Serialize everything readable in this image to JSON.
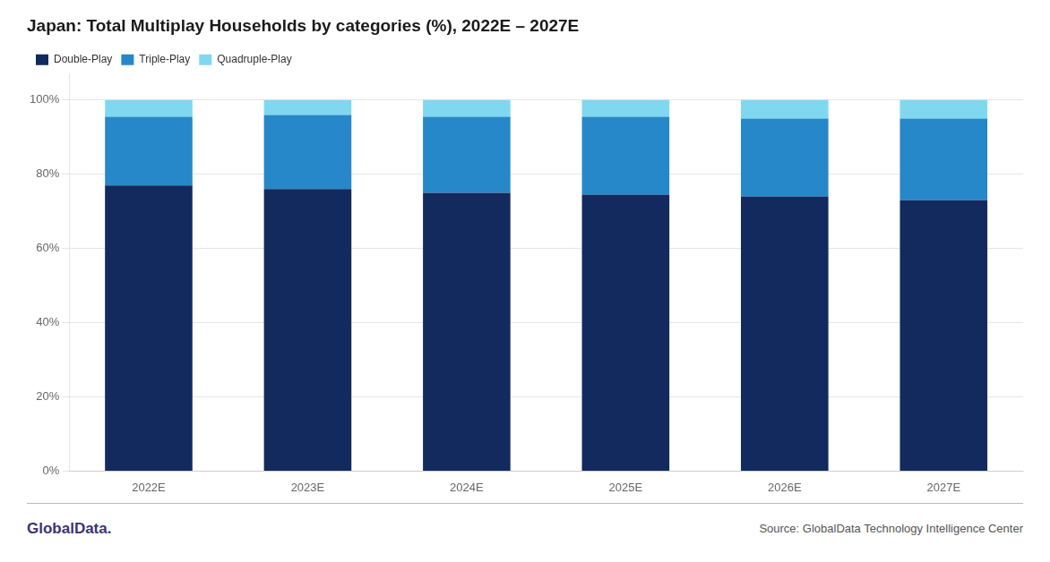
{
  "chart_data": {
    "type": "bar",
    "title": "Japan: Total Multiplay Households by categories (%), 2022E – 2027E",
    "categories": [
      "2022E",
      "2023E",
      "2024E",
      "2025E",
      "2026E",
      "2027E"
    ],
    "series": [
      {
        "name": "Double-Play",
        "color": "#132a5e",
        "values": [
          77.0,
          76.0,
          75.0,
          74.5,
          74.0,
          73.0
        ]
      },
      {
        "name": "Triple-Play",
        "color": "#2688c8",
        "values": [
          18.5,
          20.0,
          20.5,
          21.0,
          21.0,
          22.0
        ]
      },
      {
        "name": "Quadruple-Play",
        "color": "#7fd8f0",
        "values": [
          4.5,
          4.0,
          4.5,
          4.5,
          5.0,
          5.0
        ]
      }
    ],
    "stacked": true,
    "ylim": [
      0,
      107
    ],
    "yticks": [
      {
        "value": 0,
        "label": "0%"
      },
      {
        "value": 20,
        "label": "20%"
      },
      {
        "value": 40,
        "label": "40%"
      },
      {
        "value": 60,
        "label": "60%"
      },
      {
        "value": 80,
        "label": "80%"
      },
      {
        "value": 100,
        "label": "100%"
      }
    ],
    "grid": "y",
    "legend": "upper left",
    "annotations": [
      {
        "text": "GlobalData.",
        "color": "#3b3472"
      },
      {
        "text": "Source: GlobalData Technology Intelligence Center"
      }
    ]
  }
}
